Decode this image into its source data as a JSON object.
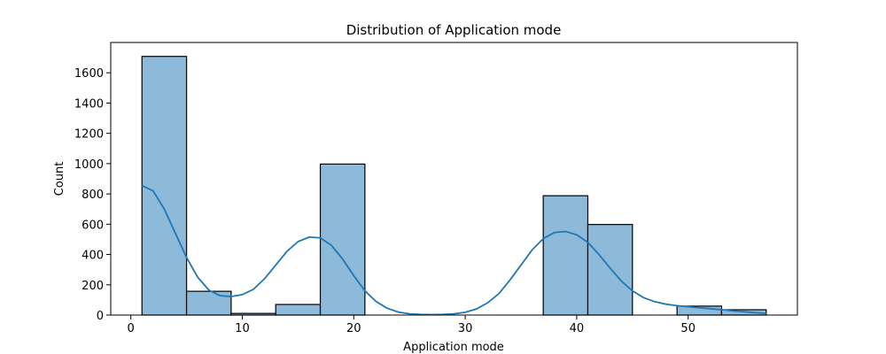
{
  "chart_data": {
    "type": "bar",
    "title": "Distribution of Application mode",
    "xlabel": "Application mode",
    "ylabel": "Count",
    "xlim": [
      -1.8,
      59.8
    ],
    "ylim": [
      0,
      1800
    ],
    "xticks": [
      0,
      10,
      20,
      30,
      40,
      50
    ],
    "yticks": [
      0,
      200,
      400,
      600,
      800,
      1000,
      1200,
      1400,
      1600
    ],
    "bins": [
      {
        "x0": 1,
        "x1": 5,
        "count": 1708
      },
      {
        "x0": 5,
        "x1": 9,
        "count": 157
      },
      {
        "x0": 9,
        "x1": 13,
        "count": 11
      },
      {
        "x0": 13,
        "x1": 17,
        "count": 70
      },
      {
        "x0": 17,
        "x1": 21,
        "count": 997
      },
      {
        "x0": 21,
        "x1": 25,
        "count": 0
      },
      {
        "x0": 25,
        "x1": 29,
        "count": 0
      },
      {
        "x0": 29,
        "x1": 33,
        "count": 0
      },
      {
        "x0": 33,
        "x1": 37,
        "count": 0
      },
      {
        "x0": 37,
        "x1": 41,
        "count": 788
      },
      {
        "x0": 41,
        "x1": 45,
        "count": 598
      },
      {
        "x0": 45,
        "x1": 49,
        "count": 0
      },
      {
        "x0": 49,
        "x1": 53,
        "count": 59
      },
      {
        "x0": 53,
        "x1": 57,
        "count": 35
      }
    ],
    "kde": {
      "x": [
        1,
        2,
        3,
        4,
        5,
        6,
        7,
        8,
        9,
        10,
        11,
        12,
        13,
        14,
        15,
        16,
        17,
        18,
        19,
        20,
        21,
        22,
        23,
        24,
        25,
        26,
        27,
        28,
        29,
        30,
        31,
        32,
        33,
        34,
        35,
        36,
        37,
        38,
        39,
        40,
        41,
        42,
        43,
        44,
        45,
        46,
        47,
        48,
        49,
        50,
        51,
        52,
        53,
        54,
        55,
        56,
        57
      ],
      "y": [
        855,
        820,
        700,
        540,
        380,
        250,
        165,
        128,
        122,
        135,
        170,
        240,
        330,
        420,
        485,
        515,
        510,
        460,
        370,
        260,
        160,
        90,
        45,
        20,
        8,
        4,
        3,
        4,
        8,
        18,
        40,
        80,
        140,
        230,
        330,
        430,
        505,
        545,
        552,
        530,
        480,
        400,
        310,
        225,
        160,
        115,
        88,
        72,
        62,
        55,
        48,
        42,
        35,
        28,
        22,
        16,
        11
      ]
    },
    "colors": {
      "bar_fill": "#8ebad9",
      "bar_edge": "#000000",
      "kde_line": "#1f77b4"
    },
    "grid": false,
    "legend": "none"
  }
}
